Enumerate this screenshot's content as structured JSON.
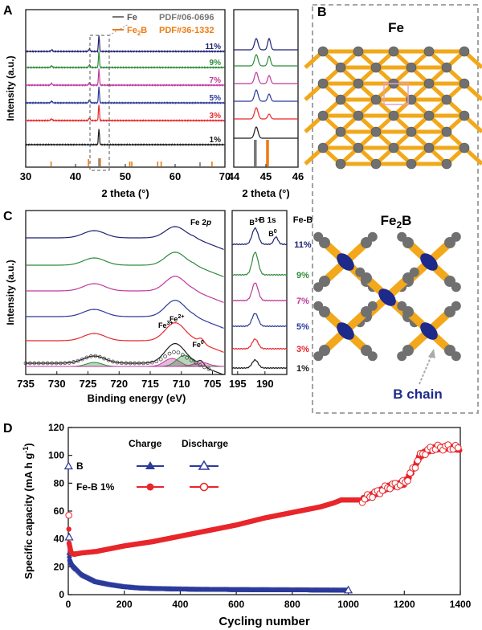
{
  "colors": {
    "black": "#1a1a1a",
    "red": "#e8262b",
    "blue": "#2b3a9b",
    "magenta": "#c0379c",
    "green": "#2e8b3a",
    "navy": "#1e2270",
    "gray": "#777777",
    "orange": "#ee7a10",
    "atom_gray": "#707070",
    "bond_gold": "#f2a81a",
    "b_blue": "#1d2a8c",
    "dash": "#999999"
  },
  "panel_labels": {
    "a": "A",
    "b": "B",
    "c": "C",
    "d": "D"
  },
  "chart_data": [
    {
      "id": "A-main",
      "type": "line",
      "xlabel": "2 theta (°)",
      "ylabel": "Intensity (a.u.)",
      "xlim": [
        30,
        70
      ],
      "xticks": [
        30,
        40,
        50,
        60,
        70
      ],
      "legend": [
        {
          "label_main": "Fe",
          "label_sub": "",
          "label_tail": "",
          "ref": "PDF#06-0696",
          "color": "#777777"
        },
        {
          "label_main": "Fe",
          "label_sub": "2",
          "label_tail": "B",
          "ref": "PDF#36-1332",
          "color": "#ee7a10"
        }
      ],
      "series": [
        {
          "name": "1%",
          "color": "#1a1a1a"
        },
        {
          "name": "3%",
          "color": "#e8262b"
        },
        {
          "name": "5%",
          "color": "#2b3a9b"
        },
        {
          "name": "7%",
          "color": "#c0379c"
        },
        {
          "name": "9%",
          "color": "#2e8b3a"
        },
        {
          "name": "11%",
          "color": "#1e2270"
        }
      ],
      "main_peak_2theta": 44.7,
      "fe2b_ref_peaks": [
        35.1,
        42.6,
        45.0,
        50.9,
        51.3,
        56.5,
        57.2,
        67.4
      ],
      "fe_ref_peaks": [
        44.7,
        65.0
      ]
    },
    {
      "id": "A-zoom",
      "type": "line",
      "xlabel": "2 theta (°)",
      "xlim": [
        44,
        46
      ],
      "xticks": [
        44,
        45,
        46
      ],
      "peaks": [
        44.7,
        45.1
      ],
      "ref_fe": 44.67,
      "ref_fe2b": 45.05
    },
    {
      "id": "C-main",
      "type": "line",
      "xlabel": "Binding energy (eV)",
      "ylabel": "Intensity (a.u.)",
      "xlim": [
        735,
        703
      ],
      "xticks": [
        735,
        730,
        725,
        720,
        715,
        710,
        705
      ],
      "title_main": "Fe 2",
      "title_italic": "p",
      "peak_labels": [
        {
          "text": "Fe",
          "sup": "3+",
          "x": 712.0
        },
        {
          "text": "Fe",
          "sup": "2+",
          "x": 710.2
        },
        {
          "text": "Fe",
          "sup": "0",
          "x": 706.8
        }
      ]
    },
    {
      "id": "C-zoom",
      "type": "line",
      "xlim": [
        196,
        186
      ],
      "xticks": [
        195,
        190
      ],
      "title": "B 1s",
      "annot_b3": {
        "text": "B",
        "sup": "3+"
      },
      "annot_b0": {
        "text": "B",
        "sup": "0"
      },
      "series_header": "Fe-B",
      "series": [
        "11%",
        "9%",
        "7%",
        "5%",
        "3%",
        "1%"
      ]
    },
    {
      "id": "D",
      "type": "scatter",
      "xlabel": "Cycling number",
      "ylabel": "Specific capacity (mA h g",
      "ylabel_sup": "-1",
      "ylabel_tail": ")",
      "xlim": [
        0,
        1400
      ],
      "ylim": [
        0,
        120
      ],
      "xticks": [
        0,
        200,
        400,
        600,
        800,
        1000,
        1200,
        1400
      ],
      "yticks": [
        0,
        20,
        40,
        60,
        80,
        100,
        120
      ],
      "legend_headers": [
        "Charge",
        "Discharge"
      ],
      "series": [
        {
          "name": "B",
          "color": "#2b3a9b",
          "points": [
            [
              1,
              92
            ],
            [
              2,
              41
            ],
            [
              3,
              30
            ],
            [
              5,
              26
            ],
            [
              10,
              23
            ],
            [
              20,
              20
            ],
            [
              50,
              14
            ],
            [
              100,
              9
            ],
            [
              150,
              7
            ],
            [
              200,
              5.5
            ],
            [
              250,
              4.6
            ],
            [
              300,
              4.2
            ],
            [
              400,
              3.8
            ],
            [
              500,
              3.5
            ],
            [
              600,
              3.4
            ],
            [
              700,
              3.3
            ],
            [
              800,
              3.2
            ],
            [
              900,
              3.1
            ],
            [
              1000,
              3
            ]
          ]
        },
        {
          "name": "Fe-B 1%",
          "color": "#e8262b",
          "points": [
            [
              1,
              57
            ],
            [
              3,
              37
            ],
            [
              10,
              30
            ],
            [
              20,
              29
            ],
            [
              50,
              30
            ],
            [
              100,
              31
            ],
            [
              200,
              35
            ],
            [
              300,
              38
            ],
            [
              400,
              42
            ],
            [
              500,
              46
            ],
            [
              600,
              50
            ],
            [
              700,
              55
            ],
            [
              800,
              59
            ],
            [
              900,
              63
            ],
            [
              950,
              66
            ],
            [
              975,
              68
            ],
            [
              1000,
              68
            ],
            [
              1050,
              68
            ],
            [
              1100,
              73
            ],
            [
              1150,
              78
            ],
            [
              1200,
              80
            ],
            [
              1220,
              86
            ],
            [
              1240,
              93
            ],
            [
              1250,
              98
            ],
            [
              1270,
              102
            ],
            [
              1300,
              105
            ],
            [
              1350,
              106
            ],
            [
              1400,
              105
            ]
          ]
        }
      ]
    }
  ],
  "panel_b": {
    "fe_title_main": "Fe",
    "fe2b_title_main": "Fe",
    "fe2b_title_sub": "2",
    "fe2b_title_tail": "B",
    "b_chain_label": "B chain"
  }
}
